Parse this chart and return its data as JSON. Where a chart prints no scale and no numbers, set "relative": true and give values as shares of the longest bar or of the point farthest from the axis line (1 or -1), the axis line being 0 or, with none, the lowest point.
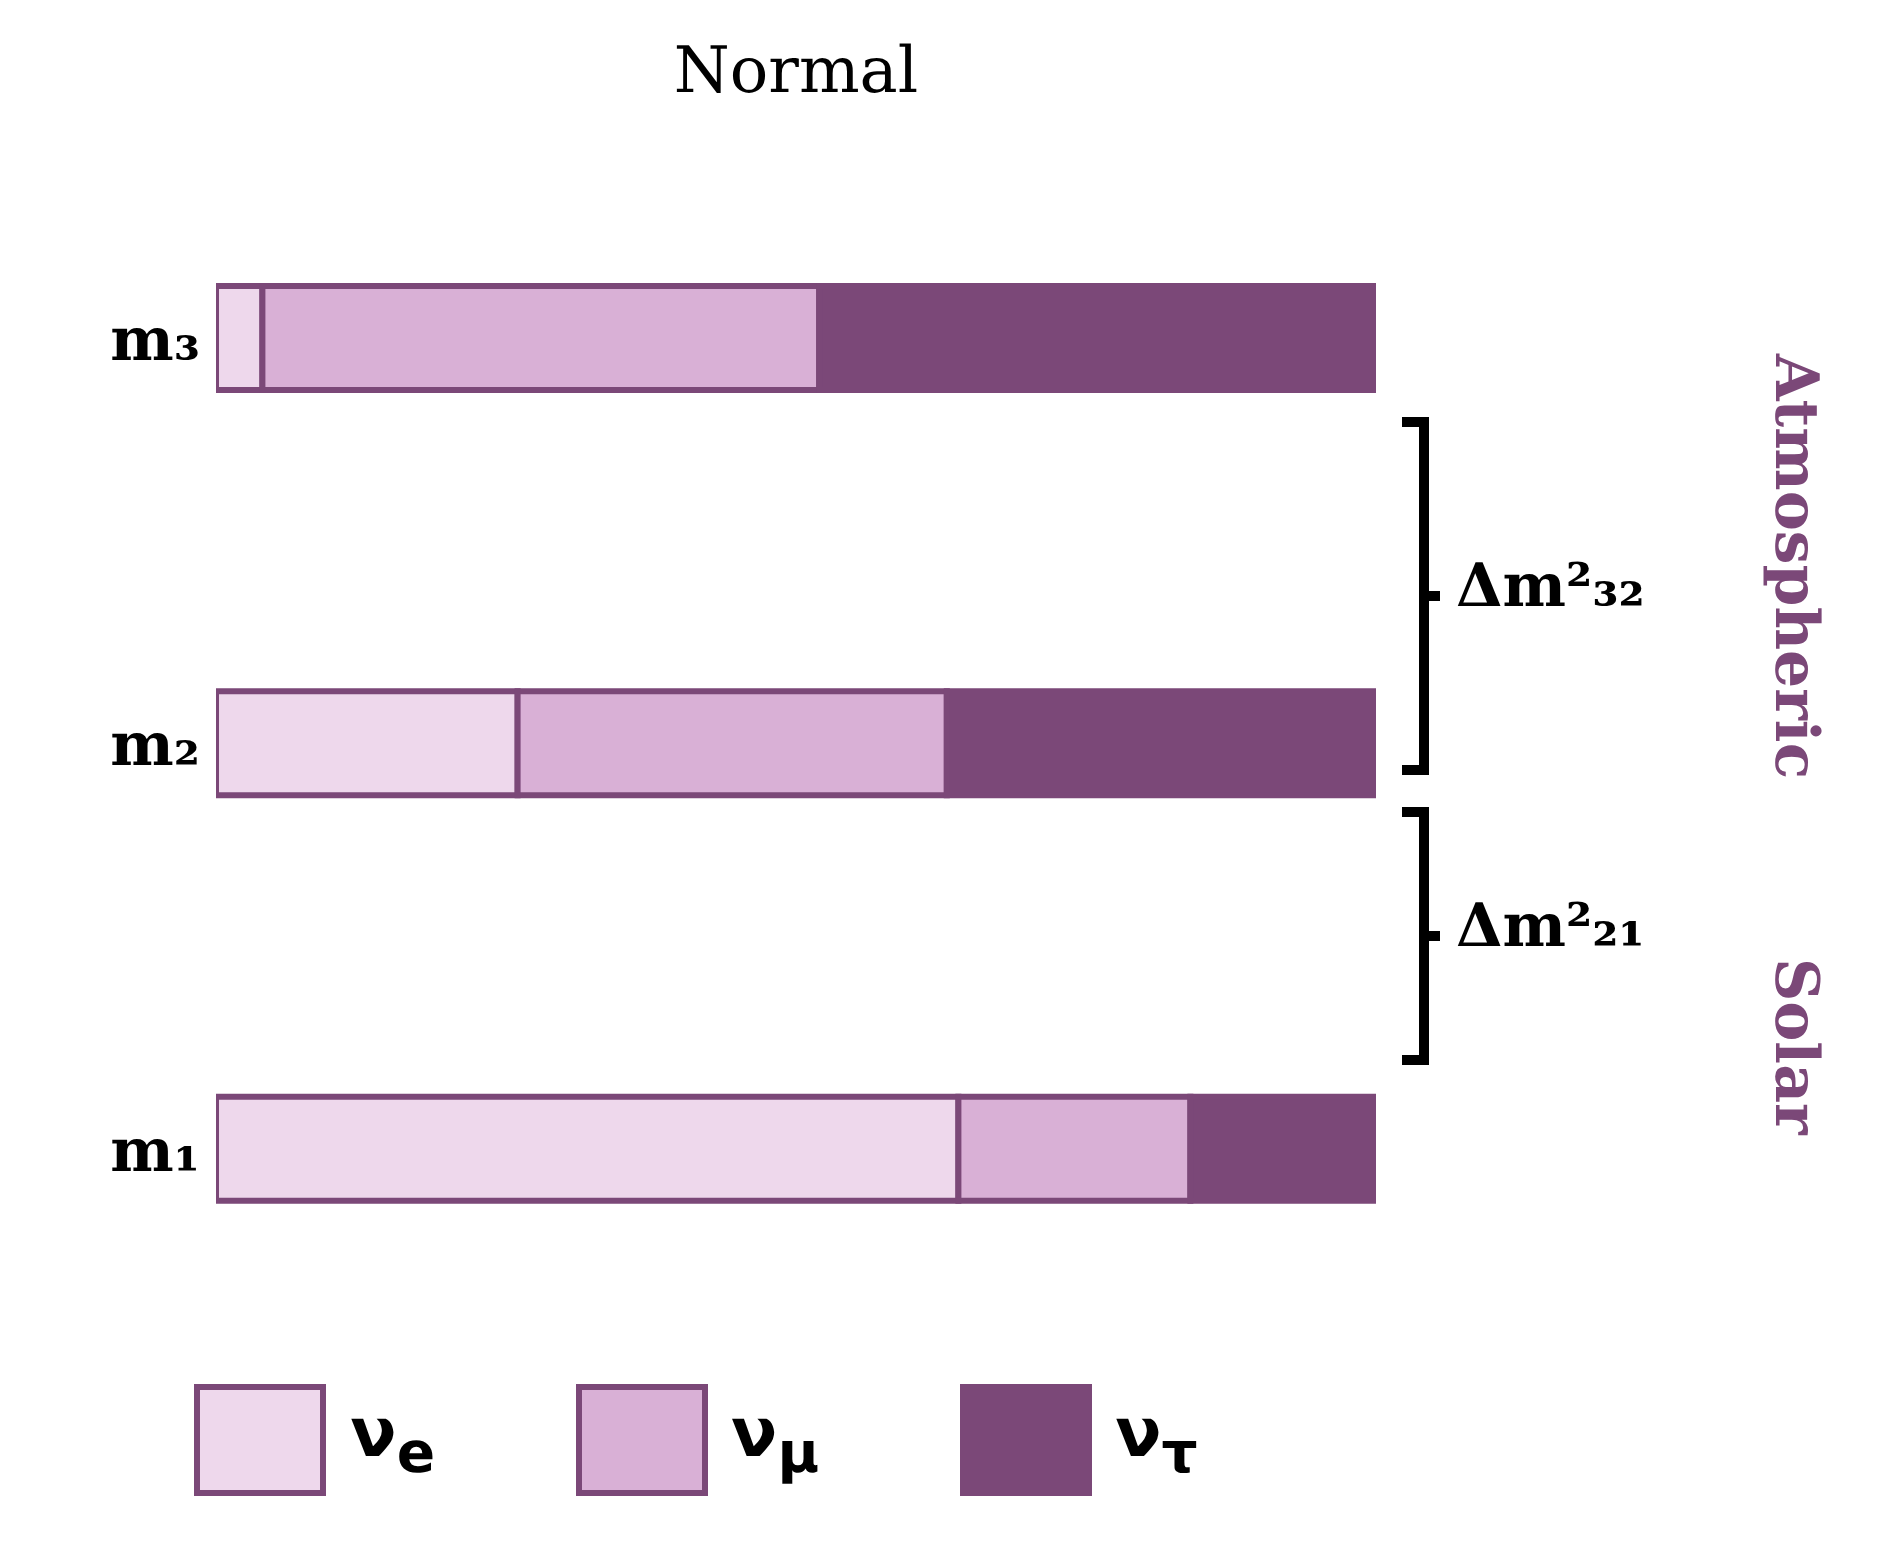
{
  "chart_data": {
    "type": "bar",
    "orientation": "horizontal",
    "stacked": true,
    "relative": true,
    "title": "Normal",
    "categories": [
      "m₃",
      "m₂",
      "m₁"
    ],
    "series": [
      {
        "name": "ν$_{e}$",
        "color": "#eed8ec",
        "values": [
          0.04,
          0.26,
          0.64
        ]
      },
      {
        "name": "ν$_{μ}$",
        "color": "#d9b0d6",
        "values": [
          0.48,
          0.37,
          0.2
        ]
      },
      {
        "name": "ν$_{τ}$",
        "color": "#7b4878",
        "values": [
          0.48,
          0.37,
          0.16
        ]
      }
    ],
    "annotations": [
      "Δm²₃₂",
      "Δm²₂₁",
      "Atmospheric",
      "Solar"
    ],
    "legend": "bottom"
  }
}
